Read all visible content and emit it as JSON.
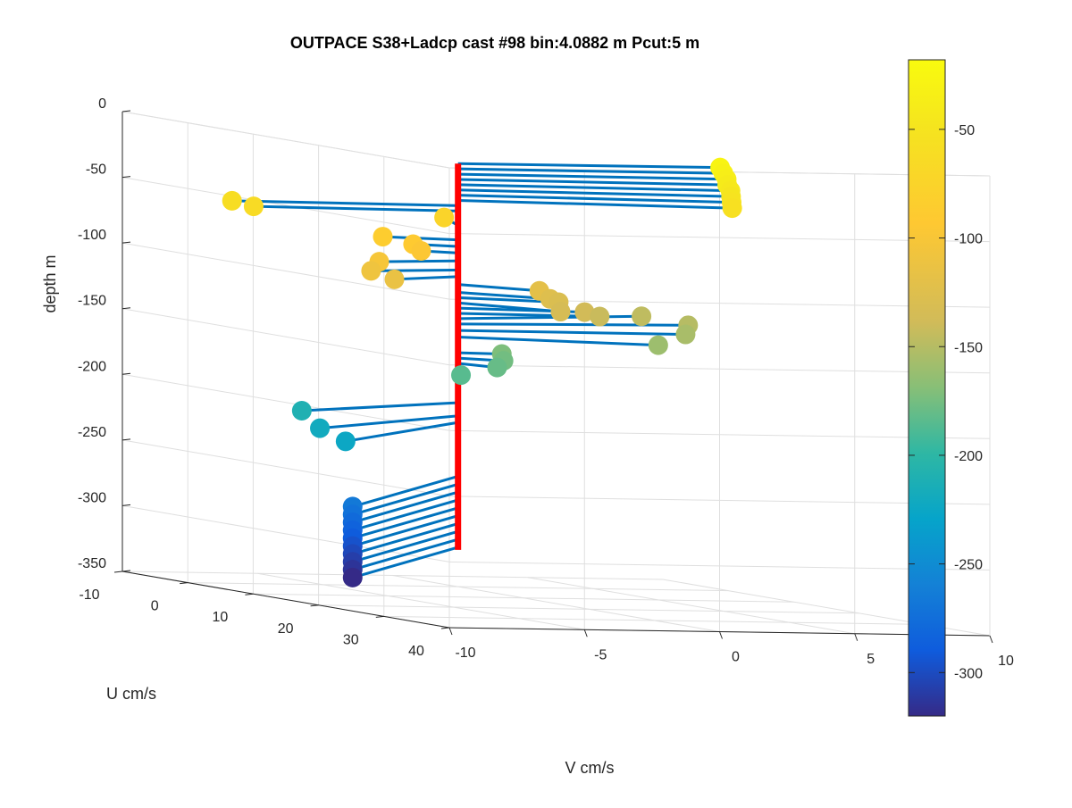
{
  "chart_data": {
    "type": "scatter3d",
    "title": "OUTPACE S38+Ladcp cast #98 bin:4.0882 m  Pcut:5 m",
    "xlabel": "V cm/s",
    "ylabel": "U cm/s",
    "zlabel": "depth m",
    "xlim": [
      -10,
      10
    ],
    "ylim": [
      -10,
      40
    ],
    "zlim": [
      -350,
      0
    ],
    "xticks": [
      "-10",
      "-5",
      "0",
      "5",
      "10"
    ],
    "yticks": [
      "-10",
      "0",
      "10",
      "20",
      "30",
      "40"
    ],
    "zticks": [
      "0",
      "-50",
      "-100",
      "-150",
      "-200",
      "-250",
      "-300",
      "-350"
    ],
    "grid": true,
    "colorbar": {
      "colormap": "parula",
      "range": [
        -320,
        -18
      ],
      "ticks": [
        "-50",
        "-100",
        "-150",
        "-200",
        "-250",
        "-300"
      ],
      "tick_values": [
        -50,
        -100,
        -150,
        -200,
        -250,
        -300
      ]
    },
    "colors": {
      "stick_color": "#0072BD",
      "depth_line_color": "#FF0000",
      "axis_color": "#262626",
      "grid_color": "#DFDFDF"
    },
    "depth_range": [
      -28,
      -322
    ],
    "points": [
      {
        "v": 9.7,
        "u": 0.0,
        "depth": -28
      },
      {
        "v": 9.7,
        "u": 0.5,
        "depth": -32
      },
      {
        "v": 9.7,
        "u": 1.0,
        "depth": -36
      },
      {
        "v": 9.6,
        "u": 1.5,
        "depth": -40
      },
      {
        "v": 9.6,
        "u": 2.0,
        "depth": -44
      },
      {
        "v": 9.5,
        "u": 2.5,
        "depth": -48
      },
      {
        "v": 9.4,
        "u": 3.0,
        "depth": -52
      },
      {
        "v": 9.3,
        "u": 3.5,
        "depth": -56
      },
      {
        "v": -8.0,
        "u": -1.5,
        "depth": -60
      },
      {
        "v": -7.2,
        "u": -1.5,
        "depth": -64
      },
      {
        "v": 1.3,
        "u": -7.5,
        "depth": -75
      },
      {
        "v": -2.3,
        "u": -2.0,
        "depth": -86
      },
      {
        "v": -1.3,
        "u": -1.5,
        "depth": -91
      },
      {
        "v": -1.0,
        "u": -1.5,
        "depth": -96
      },
      {
        "v": -3.4,
        "u": 2.0,
        "depth": -102
      },
      {
        "v": -3.7,
        "u": 2.0,
        "depth": -109
      },
      {
        "v": -3.2,
        "u": 3.5,
        "depth": -114
      },
      {
        "v": 1.8,
        "u": 5.0,
        "depth": -120
      },
      {
        "v": 2.2,
        "u": 5.0,
        "depth": -126
      },
      {
        "v": 3.0,
        "u": 3.0,
        "depth": -130
      },
      {
        "v": 2.1,
        "u": 7.0,
        "depth": -134
      },
      {
        "v": 4.2,
        "u": 2.0,
        "depth": -138
      },
      {
        "v": 5.0,
        "u": 1.0,
        "depth": -142
      },
      {
        "v": 8.0,
        "u": -5.0,
        "depth": -146
      },
      {
        "v": 9.0,
        "u": -2.0,
        "depth": -150
      },
      {
        "v": 8.3,
        "u": 0.5,
        "depth": -155
      },
      {
        "v": 6.2,
        "u": 5.0,
        "depth": -160
      },
      {
        "v": 1.5,
        "u": 0.5,
        "depth": -172
      },
      {
        "v": 1.2,
        "u": 2.0,
        "depth": -176
      },
      {
        "v": 0.6,
        "u": 3.5,
        "depth": -180
      },
      {
        "v": -1.1,
        "u": 5.0,
        "depth": -185
      },
      {
        "v": -8.2,
        "u": 10.0,
        "depth": -210
      },
      {
        "v": -8.5,
        "u": 14.0,
        "depth": -220
      },
      {
        "v": -9.0,
        "u": 20.0,
        "depth": -225
      },
      {
        "v": -11.4,
        "u": 31.0,
        "depth": -266
      },
      {
        "v": -11.4,
        "u": 31.0,
        "depth": -272
      },
      {
        "v": -11.4,
        "u": 31.0,
        "depth": -278
      },
      {
        "v": -11.4,
        "u": 31.0,
        "depth": -284
      },
      {
        "v": -11.4,
        "u": 31.0,
        "depth": -290
      },
      {
        "v": -11.4,
        "u": 31.0,
        "depth": -296
      },
      {
        "v": -11.4,
        "u": 31.0,
        "depth": -302
      },
      {
        "v": -11.4,
        "u": 31.0,
        "depth": -308
      },
      {
        "v": -11.4,
        "u": 31.0,
        "depth": -314
      },
      {
        "v": -11.4,
        "u": 31.0,
        "depth": -320
      }
    ]
  }
}
